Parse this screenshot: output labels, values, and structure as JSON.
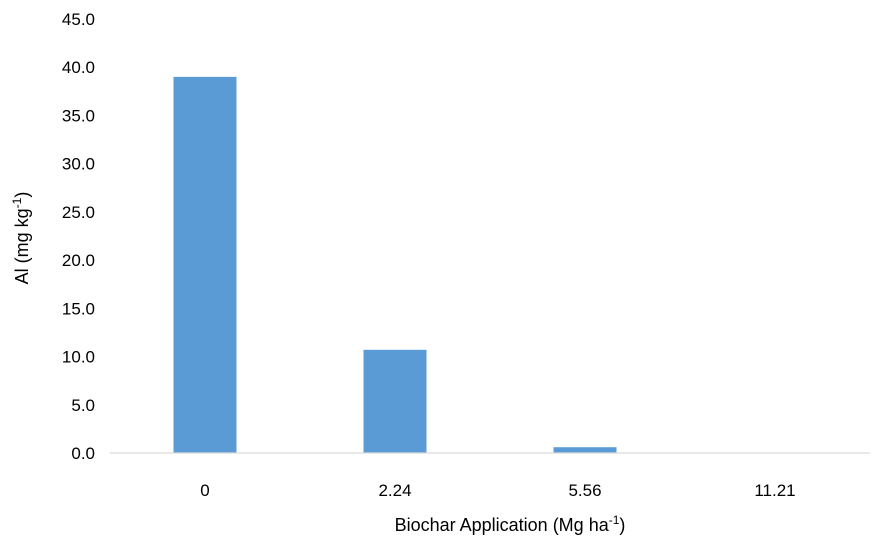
{
  "chart_data": {
    "type": "bar",
    "categories": [
      "0",
      "2.24",
      "5.56",
      "11.21"
    ],
    "values": [
      39.0,
      10.7,
      0.6,
      0.0
    ],
    "title": "",
    "xlabel": {
      "main": "Biochar Application (Mg ha",
      "sup": "-1",
      "close": ")"
    },
    "ylabel": {
      "main": "Al (mg kg",
      "sup": "-1",
      "close": ")"
    },
    "ylim": [
      0,
      45
    ],
    "yticks": [
      "0.0",
      "5.0",
      "10.0",
      "15.0",
      "20.0",
      "25.0",
      "30.0",
      "35.0",
      "40.0",
      "45.0"
    ],
    "grid": false,
    "bar_color": "#5B9BD5",
    "axis_color": "#D9D9D9"
  }
}
